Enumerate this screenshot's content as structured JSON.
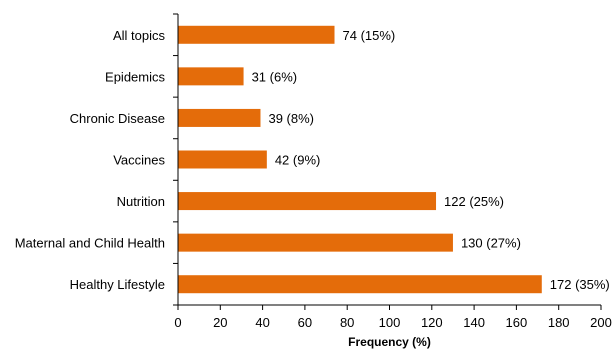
{
  "chart_data": {
    "type": "bar",
    "orientation": "horizontal",
    "title": "",
    "xlabel": "Frequency (%)",
    "ylabel": "",
    "categories": [
      "All topics",
      "Epidemics",
      "Chronic Disease",
      "Vaccines",
      "Nutrition",
      "Maternal and Child Health",
      "Healthy Lifestyle"
    ],
    "values": [
      74,
      31,
      39,
      42,
      122,
      130,
      172
    ],
    "data_labels": [
      "74 (15%)",
      "31 (6%)",
      "39 (8%)",
      "42 (9%)",
      "122 (25%)",
      "130 (27%)",
      "172 (35%)"
    ],
    "xlim": [
      0,
      200
    ],
    "xticks": [
      "0",
      "20",
      "40",
      "60",
      "80",
      "100",
      "120",
      "140",
      "160",
      "180",
      "200"
    ],
    "bar_color": "#E46C0A",
    "grid": false,
    "legend": "none"
  }
}
